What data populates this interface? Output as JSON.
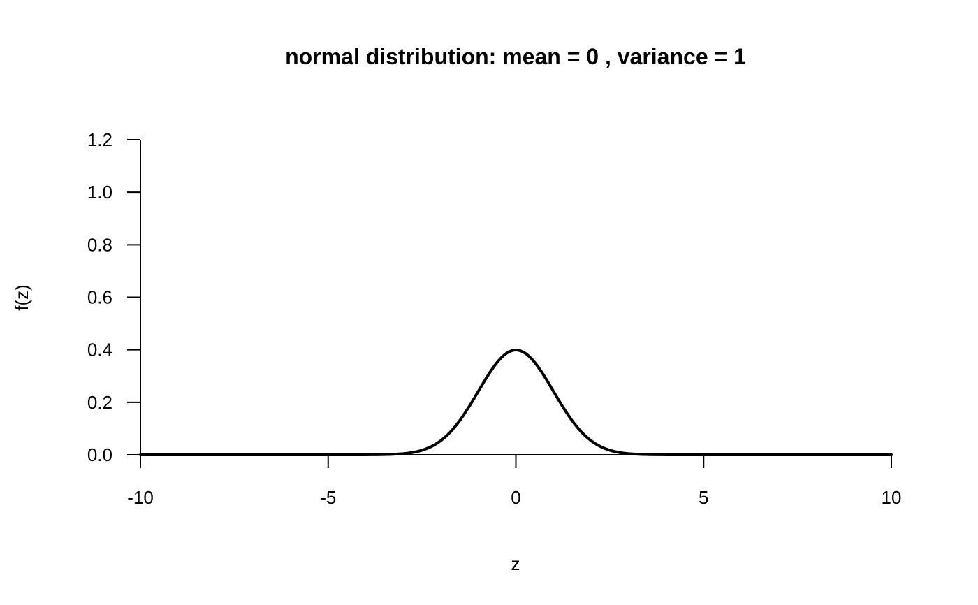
{
  "chart_data": {
    "type": "line",
    "title": "normal distribution:  mean = 0 , variance = 1",
    "xlabel": "z",
    "ylabel": "f(z)",
    "xlim": [
      -10,
      10
    ],
    "ylim": [
      0,
      1.2
    ],
    "x_ticks": [
      -10,
      -5,
      0,
      5,
      10
    ],
    "x_tick_labels": [
      "-10",
      "-5",
      "0",
      "5",
      "10"
    ],
    "y_ticks": [
      0,
      0.2,
      0.4,
      0.6,
      0.8,
      1.0,
      1.2
    ],
    "y_tick_labels": [
      "0.0",
      "0.2",
      "0.4",
      "0.6",
      "0.8",
      "1.0",
      "1.2"
    ],
    "grid": false,
    "legend": "none",
    "series": [
      {
        "color": "#000000",
        "x": [
          -10,
          -6,
          -5,
          -4,
          -3.5,
          -3,
          -2.75,
          -2.5,
          -2.25,
          -2,
          -1.75,
          -1.5,
          -1.25,
          -1,
          -0.75,
          -0.5,
          -0.25,
          0,
          0.25,
          0.5,
          0.75,
          1,
          1.25,
          1.5,
          1.75,
          2,
          2.25,
          2.5,
          2.75,
          3,
          3.5,
          4,
          5,
          6,
          10
        ],
        "y": [
          0,
          0,
          1.5e-06,
          0.0001338,
          0.0008727,
          0.0044318,
          0.0090936,
          0.0175283,
          0.0317397,
          0.053991,
          0.0862773,
          0.1295176,
          0.1826491,
          0.2419707,
          0.3011374,
          0.3520653,
          0.3866681,
          0.3989423,
          0.3866681,
          0.3520653,
          0.3011374,
          0.2419707,
          0.1826491,
          0.1295176,
          0.0862773,
          0.053991,
          0.0317397,
          0.0175283,
          0.0090936,
          0.0044318,
          0.0008727,
          0.0001338,
          1.5e-06,
          0,
          0
        ]
      }
    ]
  }
}
